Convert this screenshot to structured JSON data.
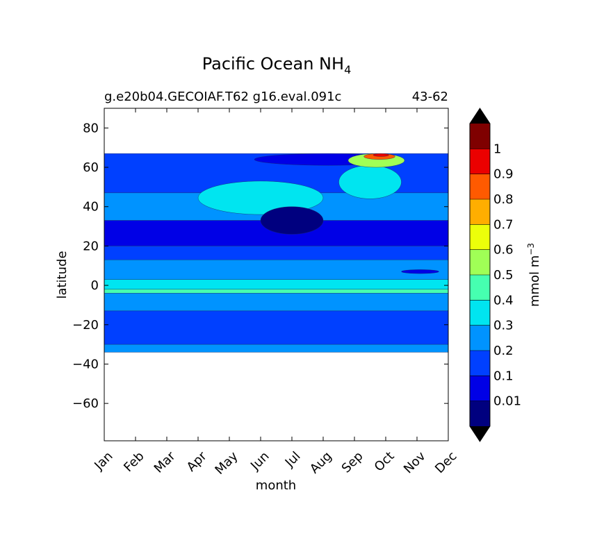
{
  "chart_data": {
    "type": "heatmap",
    "title_main": "Pacific Ocean NH",
    "title_sub": "4",
    "subtitle_left": "g.e20b04.GECOIAF.T62 g16.eval.091c",
    "subtitle_right": "43-62",
    "xlabel": "month",
    "ylabel": "latitude",
    "x_ticks": [
      "Jan",
      "Feb",
      "Mar",
      "Apr",
      "May",
      "Jun",
      "Jul",
      "Aug",
      "Sep",
      "Oct",
      "Nov",
      "Dec"
    ],
    "y_ticks": [
      80,
      60,
      40,
      20,
      0,
      -20,
      -40,
      -60
    ],
    "y_tick_labels": [
      "80",
      "60",
      "40",
      "20",
      "0",
      "−20",
      "−40",
      "−60"
    ],
    "ylim": [
      -79,
      90
    ],
    "data_lat_range": [
      -34,
      67
    ],
    "colorbar": {
      "label_main": "mmol m",
      "label_exp": "−3",
      "levels": [
        0.01,
        0.1,
        0.2,
        0.3,
        0.4,
        0.5,
        0.6,
        0.7,
        0.8,
        0.9,
        1
      ],
      "level_labels": [
        "0.01",
        "0.1",
        "0.2",
        "0.3",
        "0.4",
        "0.5",
        "0.6",
        "0.7",
        "0.8",
        "0.9",
        "1"
      ],
      "colors": [
        "#00007f",
        "#0000e6",
        "#0040ff",
        "#0093ff",
        "#00e5f0",
        "#46ffb0",
        "#a0ff56",
        "#ecff0a",
        "#ffae00",
        "#ff5a00",
        "#eb0000",
        "#7f0000"
      ],
      "extend_min_color": "#000000",
      "extend_max_color": "#000000"
    },
    "bands": [
      {
        "lat_min": 47,
        "lat_max": 67,
        "value": 0.15,
        "note": "0.1-0.2"
      },
      {
        "lat_min": 33,
        "lat_max": 47,
        "value": 0.25,
        "note": "0.2-0.3"
      },
      {
        "lat_min": 20,
        "lat_max": 33,
        "value": 0.05,
        "note": "0.01-0.1"
      },
      {
        "lat_min": 13,
        "lat_max": 20,
        "value": 0.15,
        "note": "0.1-0.2"
      },
      {
        "lat_min": 3,
        "lat_max": 13,
        "value": 0.25,
        "note": "0.2-0.3"
      },
      {
        "lat_min": -2,
        "lat_max": 3,
        "value": 0.35,
        "note": "0.3-0.4"
      },
      {
        "lat_min": -4,
        "lat_max": -2,
        "value": 0.45,
        "note": "0.4-0.5"
      },
      {
        "lat_min": -13,
        "lat_max": -4,
        "value": 0.25,
        "note": "0.2-0.3"
      },
      {
        "lat_min": -30,
        "lat_max": -13,
        "value": 0.15,
        "note": "0.1-0.2"
      },
      {
        "lat_min": -34,
        "lat_max": -30,
        "value": 0.25,
        "note": "0.2-0.3"
      }
    ],
    "features": [
      {
        "month_start": 4.8,
        "month_end": 9.5,
        "lat_min": 61,
        "lat_max": 67,
        "value": 0.05
      },
      {
        "month_start": 3.0,
        "month_end": 7.0,
        "lat_min": 36,
        "lat_max": 53,
        "value": 0.35
      },
      {
        "month_start": 7.5,
        "month_end": 9.5,
        "lat_min": 44,
        "lat_max": 61,
        "value": 0.35
      },
      {
        "month_start": 7.8,
        "month_end": 9.6,
        "lat_min": 60,
        "lat_max": 67,
        "value": 0.55
      },
      {
        "month_start": 8.3,
        "month_end": 9.3,
        "lat_min": 64,
        "lat_max": 67,
        "value": 0.85
      },
      {
        "month_start": 8.6,
        "month_end": 9.1,
        "lat_min": 65.5,
        "lat_max": 67,
        "value": 0.95
      },
      {
        "month_start": 5.0,
        "month_end": 7.0,
        "lat_min": 26,
        "lat_max": 40,
        "value": 0.005
      },
      {
        "month_start": 9.5,
        "month_end": 10.7,
        "lat_min": 6,
        "lat_max": 8,
        "value": 0.05
      }
    ]
  }
}
